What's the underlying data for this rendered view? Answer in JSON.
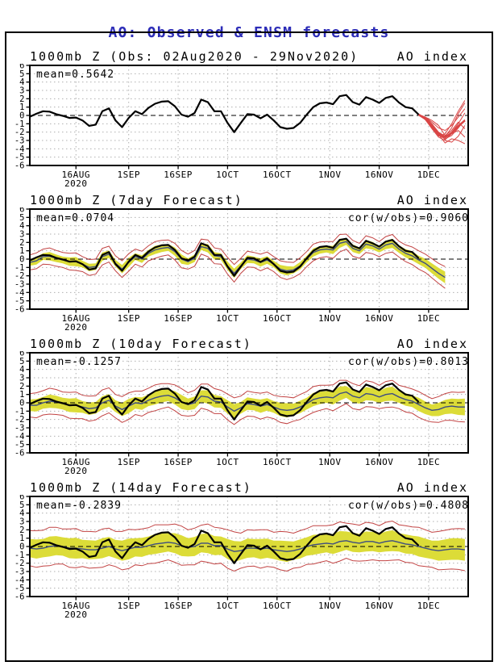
{
  "title": "AO: Observed & ENSM forecasts",
  "colors": {
    "title": "#2d2db8",
    "text": "#000000",
    "observed_line": "#000000",
    "ensemble_mean_line": "#3d4c82",
    "spread_band": "#dcdc38",
    "envelope_line": "#c24343",
    "member_line": "#d94545",
    "gridline": "#b0b0b0",
    "zero_line": "#000000",
    "frame": "#000000"
  },
  "panels": [
    {
      "title_left": "1000mb Z (Obs: 02Aug2020 - 29Nov2020)",
      "title_right": "AO index",
      "mean_label": "mean=0.5642"
    },
    {
      "title_left": "1000mb Z (7day Forecast)",
      "title_right": "AO index",
      "mean_label": "mean=0.0704",
      "cor_label": "cor(w/obs)=0.9060"
    },
    {
      "title_left": "1000mb Z (10day Forecast)",
      "title_right": "AO index",
      "mean_label": "mean=-0.1257",
      "cor_label": "cor(w/obs)=0.8013"
    },
    {
      "title_left": "1000mb Z (14day Forecast)",
      "title_right": "AO index",
      "mean_label": "mean=-0.2839",
      "cor_label": "cor(w/obs)=0.4808"
    }
  ],
  "chart_data": [
    {
      "type": "line",
      "panel": "observed",
      "title": "1000mb Z (Obs: 02Aug2020 - 29Nov2020)",
      "right_label": "AO index",
      "mean_value": 0.5642,
      "ylim": [
        -6,
        6
      ],
      "y_ticks": [
        6,
        5,
        4,
        3,
        2,
        1,
        0,
        -1,
        -2,
        -3,
        -4,
        -5,
        -6
      ],
      "x_axis": {
        "range_days": [
          0,
          133
        ],
        "start_date": "02Aug2020",
        "ticks": [
          {
            "day": 14,
            "label": "16AUG",
            "sublabel": "2020"
          },
          {
            "day": 30,
            "label": "1SEP"
          },
          {
            "day": 45,
            "label": "16SEP"
          },
          {
            "day": 60,
            "label": "1OCT"
          },
          {
            "day": 75,
            "label": "16OCT"
          },
          {
            "day": 91,
            "label": "1NOV"
          },
          {
            "day": 106,
            "label": "16NOV"
          },
          {
            "day": 121,
            "label": "1DEC"
          }
        ]
      },
      "observed": {
        "x_start": 0,
        "x_step": 2,
        "values": [
          -0.15,
          0.2,
          0.5,
          0.45,
          0.15,
          -0.05,
          -0.3,
          -0.25,
          -0.6,
          -1.25,
          -1.1,
          0.5,
          0.85,
          -0.6,
          -1.4,
          -0.3,
          0.5,
          0.15,
          0.9,
          1.4,
          1.65,
          1.7,
          1.1,
          0.1,
          -0.15,
          0.3,
          1.9,
          1.6,
          0.5,
          0.5,
          -0.9,
          -2.0,
          -0.9,
          0.15,
          0.1,
          -0.35,
          0.1,
          -0.6,
          -1.4,
          -1.6,
          -1.5,
          -0.9,
          0.1,
          1.0,
          1.45,
          1.55,
          1.35,
          2.3,
          2.45,
          1.6,
          1.3,
          2.2,
          1.9,
          1.5,
          2.1,
          2.3,
          1.55,
          1.0,
          0.85,
          0.1
        ]
      },
      "forecast_members": {
        "x_start": 118,
        "x_step": 2,
        "mean": [
          0.1,
          -0.4,
          -1.3,
          -2.2,
          -2.6,
          -2.1,
          -1.3,
          -0.6
        ],
        "members": [
          [
            0.1,
            -0.3,
            -1.2,
            -2.2,
            -2.6,
            -2.0,
            -1.0,
            0.3
          ],
          [
            0.1,
            -0.5,
            -1.5,
            -2.4,
            -2.8,
            -2.4,
            -1.5,
            -0.5
          ],
          [
            0.1,
            -0.2,
            -1.0,
            -2.0,
            -2.5,
            -1.5,
            0.2,
            1.5
          ],
          [
            0.1,
            -0.5,
            -1.6,
            -2.6,
            -3.0,
            -3.2,
            -2.5,
            -1.2
          ],
          [
            0.1,
            -0.3,
            -1.3,
            -2.3,
            -3.3,
            -2.8,
            -3.0,
            -3.4
          ],
          [
            0.1,
            -0.2,
            -0.8,
            -1.5,
            -1.8,
            -1.2,
            -0.2,
            0.8
          ],
          [
            0.1,
            -0.4,
            -1.4,
            -2.5,
            -2.2,
            -1.0,
            0.5,
            1.8
          ],
          [
            0.1,
            -0.3,
            -1.1,
            -2.1,
            -2.9,
            -2.2,
            -1.8,
            -2.6
          ],
          [
            0.1,
            -0.2,
            -0.6,
            -1.2,
            -2.4,
            -1.8,
            -0.8,
            -1.6
          ]
        ]
      }
    },
    {
      "type": "line",
      "panel": "7day Forecast",
      "title": "1000mb Z (7day Forecast)",
      "right_label": "AO index",
      "mean_value": 0.0704,
      "cor_with_obs": 0.906,
      "ylim": [
        -6,
        6
      ],
      "observed_overlay": "same series as observed panel",
      "ensemble": {
        "x_start": 0,
        "x_step": 2,
        "mean": [
          -0.4,
          -0.2,
          0.3,
          0.35,
          0.1,
          -0.1,
          -0.3,
          -0.3,
          -0.6,
          -1.0,
          -0.9,
          0.3,
          0.6,
          -0.5,
          -1.2,
          -0.4,
          0.3,
          0.0,
          0.7,
          1.1,
          1.3,
          1.4,
          0.9,
          0.0,
          -0.3,
          0.1,
          1.5,
          1.3,
          0.4,
          0.3,
          -0.8,
          -1.7,
          -0.8,
          0.0,
          -0.1,
          -0.4,
          -0.1,
          -0.6,
          -1.2,
          -1.4,
          -1.3,
          -0.8,
          0.0,
          0.8,
          1.1,
          1.2,
          1.1,
          1.9,
          2.1,
          1.3,
          1.0,
          1.8,
          1.6,
          1.2,
          1.7,
          1.9,
          1.2,
          0.7,
          0.4,
          -0.1,
          -0.5,
          -1.1,
          -1.7,
          -2.2
        ],
        "spread_halfwidth": [
          0.4,
          0.45,
          0.4,
          0.5,
          0.45,
          0.4,
          0.5,
          0.55,
          0.4,
          0.45,
          0.4,
          0.5,
          0.45,
          0.4,
          0.5,
          0.55,
          0.4,
          0.45,
          0.4,
          0.5,
          0.45,
          0.4,
          0.5,
          0.55,
          0.4,
          0.45,
          0.4,
          0.5,
          0.45,
          0.4,
          0.5,
          0.55,
          0.4,
          0.45,
          0.4,
          0.5,
          0.45,
          0.4,
          0.5,
          0.55,
          0.4,
          0.45,
          0.4,
          0.5,
          0.45,
          0.4,
          0.5,
          0.55,
          0.4,
          0.45,
          0.4,
          0.5,
          0.45,
          0.4,
          0.5,
          0.55,
          0.45,
          0.5,
          0.55,
          0.5,
          0.55,
          0.6,
          0.65,
          0.7
        ],
        "envelope_halfwidth": [
          0.9,
          0.95,
          0.9,
          1.0,
          0.95,
          0.9,
          1.0,
          1.05,
          0.9,
          0.95,
          0.9,
          1.0,
          0.95,
          0.9,
          1.0,
          1.05,
          0.9,
          0.95,
          0.9,
          1.0,
          0.95,
          0.9,
          1.0,
          1.05,
          0.9,
          0.95,
          0.9,
          1.0,
          0.95,
          0.9,
          1.0,
          1.05,
          0.9,
          0.95,
          0.9,
          1.0,
          0.95,
          0.9,
          1.0,
          1.05,
          0.9,
          0.95,
          0.9,
          1.0,
          0.95,
          0.9,
          1.0,
          1.05,
          0.9,
          0.95,
          0.9,
          1.0,
          0.95,
          0.9,
          1.0,
          1.05,
          0.95,
          1.0,
          1.05,
          1.1,
          1.1,
          1.15,
          1.2,
          1.3
        ]
      }
    },
    {
      "type": "line",
      "panel": "10day Forecast",
      "title": "1000mb Z (10day Forecast)",
      "right_label": "AO index",
      "mean_value": -0.1257,
      "cor_with_obs": 0.8013,
      "ylim": [
        -6,
        6
      ],
      "observed_overlay": "same series as observed panel",
      "ensemble": {
        "x_start": 0,
        "x_step": 2,
        "mean": [
          -0.3,
          -0.3,
          0.0,
          0.2,
          0.1,
          -0.1,
          -0.3,
          -0.3,
          -0.5,
          -0.7,
          -0.6,
          0.0,
          0.3,
          -0.4,
          -0.8,
          -0.4,
          0.0,
          -0.1,
          0.3,
          0.6,
          0.8,
          0.9,
          0.6,
          0.1,
          -0.2,
          0.0,
          0.8,
          0.7,
          0.2,
          0.1,
          -0.5,
          -1.0,
          -0.6,
          -0.1,
          -0.2,
          -0.4,
          -0.2,
          -0.5,
          -0.8,
          -0.9,
          -0.8,
          -0.5,
          -0.1,
          0.4,
          0.6,
          0.7,
          0.6,
          1.1,
          1.3,
          0.8,
          0.6,
          1.1,
          1.0,
          0.7,
          1.0,
          1.1,
          0.7,
          0.4,
          0.2,
          -0.2,
          -0.6,
          -0.9,
          -0.8,
          -0.5,
          -0.4,
          -0.5,
          -0.5
        ],
        "spread_halfwidth": [
          0.7,
          0.75,
          0.7,
          0.8,
          0.75,
          0.7,
          0.8,
          0.85,
          0.7,
          0.75,
          0.7,
          0.8,
          0.75,
          0.7,
          0.8,
          0.85,
          0.7,
          0.75,
          0.7,
          0.8,
          0.75,
          0.7,
          0.8,
          0.85,
          0.7,
          0.75,
          0.7,
          0.8,
          0.75,
          0.7,
          0.8,
          0.85,
          0.7,
          0.75,
          0.7,
          0.8,
          0.75,
          0.7,
          0.8,
          0.85,
          0.7,
          0.75,
          0.7,
          0.8,
          0.75,
          0.7,
          0.8,
          0.85,
          0.7,
          0.75,
          0.7,
          0.8,
          0.75,
          0.7,
          0.8,
          0.85,
          0.7,
          0.75,
          0.7,
          0.8,
          0.75,
          0.7,
          0.8,
          0.85,
          0.9,
          0.95,
          1.0
        ],
        "envelope_halfwidth": [
          1.4,
          1.5,
          1.45,
          1.55,
          1.5,
          1.4,
          1.55,
          1.6,
          1.4,
          1.5,
          1.45,
          1.55,
          1.5,
          1.4,
          1.55,
          1.6,
          1.4,
          1.5,
          1.45,
          1.55,
          1.5,
          1.4,
          1.55,
          1.6,
          1.4,
          1.5,
          1.45,
          1.55,
          1.5,
          1.4,
          1.55,
          1.6,
          1.4,
          1.5,
          1.45,
          1.55,
          1.5,
          1.4,
          1.55,
          1.6,
          1.4,
          1.5,
          1.45,
          1.55,
          1.5,
          1.4,
          1.55,
          1.6,
          1.4,
          1.5,
          1.45,
          1.55,
          1.5,
          1.4,
          1.55,
          1.6,
          1.4,
          1.5,
          1.45,
          1.55,
          1.5,
          1.4,
          1.55,
          1.6,
          1.7,
          1.75,
          1.8
        ]
      }
    },
    {
      "type": "line",
      "panel": "14day Forecast",
      "title": "1000mb Z (14day Forecast)",
      "right_label": "AO index",
      "mean_value": -0.2839,
      "cor_with_obs": 0.4808,
      "ylim": [
        -6,
        6
      ],
      "observed_overlay": "same series as observed panel",
      "ensemble": {
        "x_start": 0,
        "x_step": 2,
        "mean": [
          -0.2,
          -0.3,
          -0.2,
          0.0,
          0.1,
          0.0,
          -0.2,
          -0.2,
          -0.3,
          -0.4,
          -0.4,
          -0.2,
          0.0,
          -0.3,
          -0.5,
          -0.3,
          -0.1,
          -0.1,
          0.1,
          0.3,
          0.4,
          0.5,
          0.4,
          0.1,
          -0.1,
          0.0,
          0.4,
          0.4,
          0.1,
          0.1,
          -0.3,
          -0.6,
          -0.5,
          -0.2,
          -0.2,
          -0.3,
          -0.2,
          -0.4,
          -0.5,
          -0.6,
          -0.5,
          -0.3,
          0.0,
          0.2,
          0.3,
          0.4,
          0.3,
          0.6,
          0.7,
          0.5,
          0.4,
          0.6,
          0.6,
          0.4,
          0.6,
          0.7,
          0.5,
          0.3,
          0.2,
          0.0,
          -0.2,
          -0.4,
          -0.5,
          -0.4,
          -0.3,
          -0.3,
          -0.4
        ],
        "spread_halfwidth": [
          1.1,
          1.15,
          1.1,
          1.2,
          1.15,
          1.1,
          1.2,
          1.25,
          1.1,
          1.15,
          1.1,
          1.2,
          1.15,
          1.1,
          1.2,
          1.25,
          1.1,
          1.15,
          1.1,
          1.2,
          1.15,
          1.1,
          1.2,
          1.25,
          1.1,
          1.15,
          1.1,
          1.2,
          1.15,
          1.1,
          1.2,
          1.25,
          1.1,
          1.15,
          1.1,
          1.2,
          1.15,
          1.1,
          1.2,
          1.25,
          1.1,
          1.15,
          1.1,
          1.2,
          1.15,
          1.1,
          1.2,
          1.25,
          1.1,
          1.15,
          1.1,
          1.2,
          1.15,
          1.1,
          1.2,
          1.25,
          1.1,
          1.15,
          1.1,
          1.2,
          1.15,
          1.1,
          1.2,
          1.25,
          1.3,
          1.3,
          1.3
        ],
        "envelope_halfwidth": [
          2.1,
          2.2,
          2.15,
          2.3,
          2.2,
          2.1,
          2.3,
          2.35,
          2.1,
          2.2,
          2.15,
          2.3,
          2.2,
          2.1,
          2.3,
          2.35,
          2.1,
          2.2,
          2.15,
          2.3,
          2.2,
          2.1,
          2.3,
          2.35,
          2.1,
          2.2,
          2.15,
          2.3,
          2.2,
          2.1,
          2.3,
          2.35,
          2.1,
          2.2,
          2.15,
          2.3,
          2.2,
          2.1,
          2.3,
          2.35,
          2.1,
          2.2,
          2.15,
          2.3,
          2.2,
          2.1,
          2.3,
          2.35,
          2.1,
          2.2,
          2.15,
          2.3,
          2.2,
          2.1,
          2.3,
          2.35,
          2.1,
          2.2,
          2.15,
          2.3,
          2.2,
          2.1,
          2.3,
          2.35,
          2.4,
          2.45,
          2.5
        ]
      }
    }
  ]
}
